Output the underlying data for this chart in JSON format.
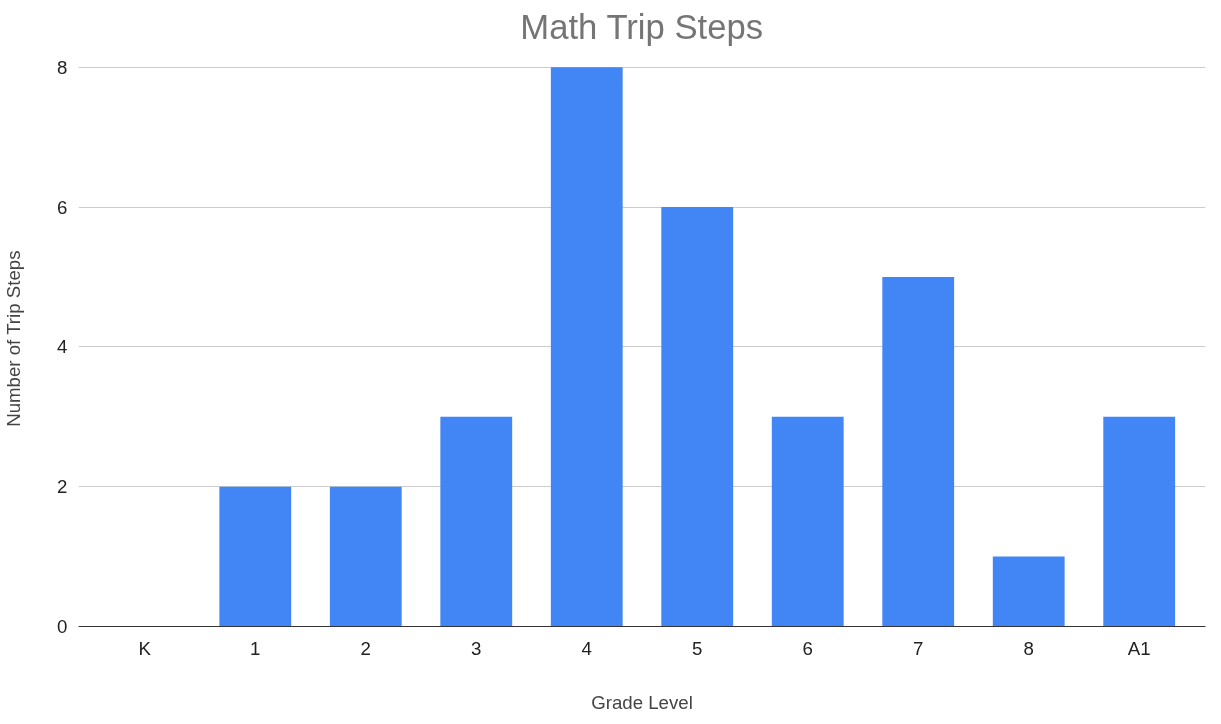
{
  "chart_data": {
    "type": "bar",
    "title": "Math Trip Steps",
    "xlabel": "Grade Level",
    "ylabel": "Number of Trip Steps",
    "categories": [
      "K",
      "1",
      "2",
      "3",
      "4",
      "5",
      "6",
      "7",
      "8",
      "A1"
    ],
    "values": [
      0,
      2,
      2,
      3,
      8,
      6,
      3,
      5,
      1,
      3
    ],
    "color": "#4285f4",
    "ylim": [
      0,
      8
    ],
    "yticks": [
      0,
      2,
      4,
      6,
      8
    ],
    "grid": "y"
  }
}
